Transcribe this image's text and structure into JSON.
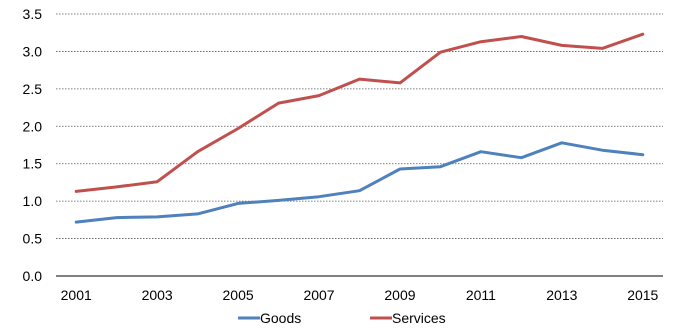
{
  "chart_data": {
    "type": "line",
    "title": "",
    "xlabel": "",
    "ylabel": "",
    "x": [
      2001,
      2002,
      2003,
      2004,
      2005,
      2006,
      2007,
      2008,
      2009,
      2010,
      2011,
      2012,
      2013,
      2014,
      2015
    ],
    "x_tick_labels": [
      "2001",
      "2003",
      "2005",
      "2007",
      "2009",
      "2011",
      "2013",
      "2015"
    ],
    "y_tick_labels": [
      "0.0",
      "0.5",
      "1.0",
      "1.5",
      "2.0",
      "2.5",
      "3.0",
      "3.5"
    ],
    "ylim": [
      0,
      3.5
    ],
    "grid": "horizontal dashed",
    "legend_position": "bottom",
    "series": [
      {
        "name": "Goods",
        "color": "#4F81BD",
        "values": [
          0.72,
          0.78,
          0.79,
          0.83,
          0.97,
          1.01,
          1.06,
          1.14,
          1.43,
          1.46,
          1.66,
          1.58,
          1.78,
          1.68,
          1.62
        ]
      },
      {
        "name": "Services",
        "color": "#C0504D",
        "values": [
          1.13,
          1.19,
          1.26,
          1.66,
          1.97,
          2.31,
          2.41,
          2.63,
          2.58,
          2.99,
          3.13,
          3.2,
          3.08,
          3.04,
          3.23
        ]
      }
    ]
  }
}
